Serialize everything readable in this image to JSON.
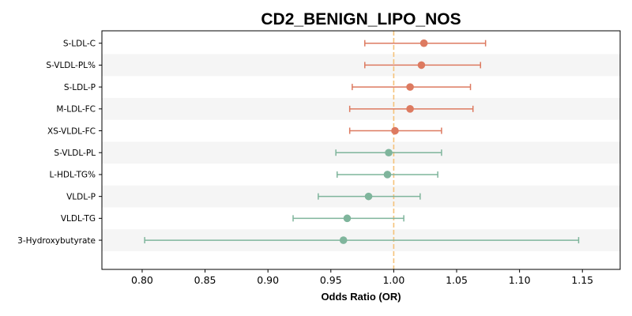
{
  "chart_data": {
    "type": "forest",
    "title": "CD2_BENIGN_LIPO_NOS",
    "xlabel": "Odds Ratio (OR)",
    "ylabel": "",
    "xlim": [
      0.768,
      1.18
    ],
    "xticks": [
      "0.80",
      "0.85",
      "0.90",
      "0.95",
      "1.00",
      "1.05",
      "1.10",
      "1.15"
    ],
    "reference_line": 1.0,
    "grid": false,
    "colors": {
      "positive": "#dd7a60",
      "negative": "#7fb59c",
      "reference": "#f5c27a",
      "band": "#f5f5f5"
    },
    "rows": [
      {
        "label": "S-LDL-C",
        "or": 1.024,
        "lower": 0.977,
        "upper": 1.073,
        "group": "positive"
      },
      {
        "label": "S-VLDL-PL%",
        "or": 1.022,
        "lower": 0.977,
        "upper": 1.069,
        "group": "positive"
      },
      {
        "label": "S-LDL-P",
        "or": 1.013,
        "lower": 0.967,
        "upper": 1.061,
        "group": "positive"
      },
      {
        "label": "M-LDL-FC",
        "or": 1.013,
        "lower": 0.965,
        "upper": 1.063,
        "group": "positive"
      },
      {
        "label": "XS-VLDL-FC",
        "or": 1.001,
        "lower": 0.965,
        "upper": 1.038,
        "group": "positive"
      },
      {
        "label": "S-VLDL-PL",
        "or": 0.996,
        "lower": 0.954,
        "upper": 1.038,
        "group": "negative"
      },
      {
        "label": "L-HDL-TG%",
        "or": 0.995,
        "lower": 0.955,
        "upper": 1.035,
        "group": "negative"
      },
      {
        "label": "VLDL-P",
        "or": 0.98,
        "lower": 0.94,
        "upper": 1.021,
        "group": "negative"
      },
      {
        "label": "VLDL-TG",
        "or": 0.963,
        "lower": 0.92,
        "upper": 1.008,
        "group": "negative"
      },
      {
        "label": "3-Hydroxybutyrate",
        "or": 0.96,
        "lower": 0.802,
        "upper": 1.147,
        "group": "negative"
      }
    ]
  }
}
